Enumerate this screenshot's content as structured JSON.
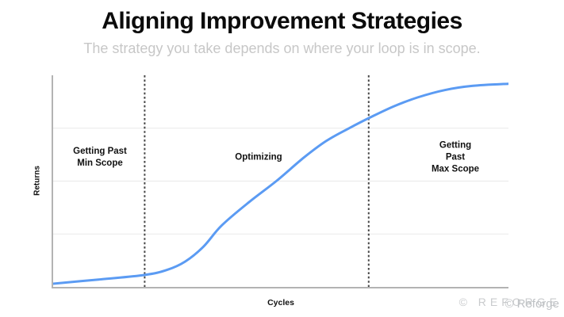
{
  "page": {
    "title": "Aligning Improvement Strategies",
    "subtitle": "The strategy you take depends on where your loop is in scope."
  },
  "chart": {
    "y_axis_label": "Returns",
    "x_axis_label": "Cycles"
  },
  "watermark": {
    "spaced_text": "© REFORGE",
    "text": "© Reforge"
  },
  "chart_data": {
    "type": "line",
    "title": "Aligning Improvement Strategies",
    "subtitle": "The strategy you take depends on where your loop is in scope.",
    "xlabel": "Cycles",
    "ylabel": "Returns",
    "x": [
      0,
      10,
      20,
      25,
      29,
      33,
      37,
      43,
      49,
      55,
      60,
      65,
      70,
      75,
      80,
      86,
      92,
      100
    ],
    "series": [
      {
        "name": "Returns",
        "values": [
          1.5,
          3.5,
          5.6,
          8,
          12,
          19,
          29,
          40,
          50,
          61,
          69,
          75,
          80.5,
          85.5,
          89.5,
          93,
          95,
          96
        ]
      }
    ],
    "xlim": [
      0,
      100
    ],
    "ylim": [
      0,
      100
    ],
    "tick_labels_visible": false,
    "grid": "horizontal",
    "gridlines_y": [
      25,
      50,
      75
    ],
    "dividers_x": [
      20.1,
      69.3
    ],
    "regions": [
      {
        "label": "Getting Past\nMin Scope",
        "x_range": [
          0,
          20.1
        ]
      },
      {
        "label": "Optimizing",
        "x_range": [
          20.1,
          69.3
        ]
      },
      {
        "label": "Getting Past\nMax Scope",
        "x_range": [
          69.3,
          100
        ]
      }
    ],
    "legend": "none",
    "line_color": "#5b9bf3",
    "divider_color": "#474747",
    "gridline_color": "#e9e9e9",
    "axis_color": "#b3b3b3",
    "title_color": "#0b0b0b",
    "subtitle_color": "#c7c7c7",
    "watermark_color": "#c9cbcd"
  }
}
